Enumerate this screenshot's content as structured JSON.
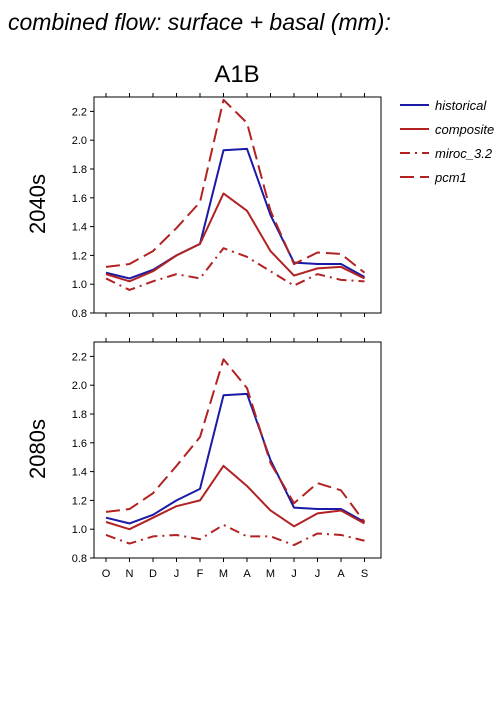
{
  "page_title": "combined flow: surface + basal (mm):",
  "scenario": "A1B",
  "chart_data": [
    {
      "type": "line",
      "row_label": "2040s",
      "categories": [
        "O",
        "N",
        "D",
        "J",
        "F",
        "M",
        "A",
        "M",
        "J",
        "J",
        "A",
        "S"
      ],
      "ylim": [
        0.8,
        2.3
      ],
      "yticks": [
        "0.8",
        "1.0",
        "1.2",
        "1.4",
        "1.6",
        "1.8",
        "2.0",
        "2.2"
      ],
      "series": [
        {
          "name": "historical",
          "color": "#1a1aa6",
          "dash": "solid",
          "values": [
            1.08,
            1.04,
            1.1,
            1.2,
            1.28,
            1.93,
            1.94,
            1.48,
            1.15,
            1.14,
            1.14,
            1.05
          ]
        },
        {
          "name": "composite",
          "color": "#b22222",
          "dash": "solid",
          "values": [
            1.07,
            1.02,
            1.09,
            1.2,
            1.28,
            1.63,
            1.51,
            1.23,
            1.06,
            1.11,
            1.12,
            1.04
          ]
        },
        {
          "name": "miroc_3.2",
          "color": "#b22222",
          "dash": "dashdot",
          "values": [
            1.04,
            0.96,
            1.02,
            1.07,
            1.04,
            1.25,
            1.19,
            1.09,
            0.99,
            1.07,
            1.03,
            1.02
          ]
        },
        {
          "name": "pcm1",
          "color": "#b22222",
          "dash": "dashed",
          "values": [
            1.12,
            1.14,
            1.23,
            1.39,
            1.57,
            2.28,
            2.12,
            1.51,
            1.14,
            1.22,
            1.21,
            1.08
          ]
        }
      ]
    },
    {
      "type": "line",
      "row_label": "2080s",
      "categories": [
        "O",
        "N",
        "D",
        "J",
        "F",
        "M",
        "A",
        "M",
        "J",
        "J",
        "A",
        "S"
      ],
      "ylim": [
        0.8,
        2.3
      ],
      "yticks": [
        "0.8",
        "1.0",
        "1.2",
        "1.4",
        "1.6",
        "1.8",
        "2.0",
        "2.2"
      ],
      "series": [
        {
          "name": "historical",
          "color": "#1a1aa6",
          "dash": "solid",
          "values": [
            1.08,
            1.04,
            1.1,
            1.2,
            1.28,
            1.93,
            1.94,
            1.48,
            1.15,
            1.14,
            1.14,
            1.05
          ]
        },
        {
          "name": "composite",
          "color": "#b22222",
          "dash": "solid",
          "values": [
            1.05,
            1.0,
            1.08,
            1.16,
            1.2,
            1.44,
            1.3,
            1.13,
            1.02,
            1.11,
            1.13,
            1.04
          ]
        },
        {
          "name": "miroc_3.2",
          "color": "#b22222",
          "dash": "dashdot",
          "values": [
            0.96,
            0.9,
            0.95,
            0.96,
            0.93,
            1.03,
            0.95,
            0.95,
            0.89,
            0.97,
            0.96,
            0.92
          ]
        },
        {
          "name": "pcm1",
          "color": "#b22222",
          "dash": "dashed",
          "values": [
            1.12,
            1.14,
            1.25,
            1.44,
            1.64,
            2.18,
            1.98,
            1.46,
            1.18,
            1.32,
            1.27,
            1.05
          ]
        }
      ]
    }
  ],
  "legend": [
    {
      "name": "historical",
      "color": "#1a1aa6",
      "dash": "solid"
    },
    {
      "name": "composite",
      "color": "#b22222",
      "dash": "solid"
    },
    {
      "name": "miroc_3.2",
      "color": "#b22222",
      "dash": "dashdot"
    },
    {
      "name": "pcm1",
      "color": "#b22222",
      "dash": "dashed"
    }
  ]
}
